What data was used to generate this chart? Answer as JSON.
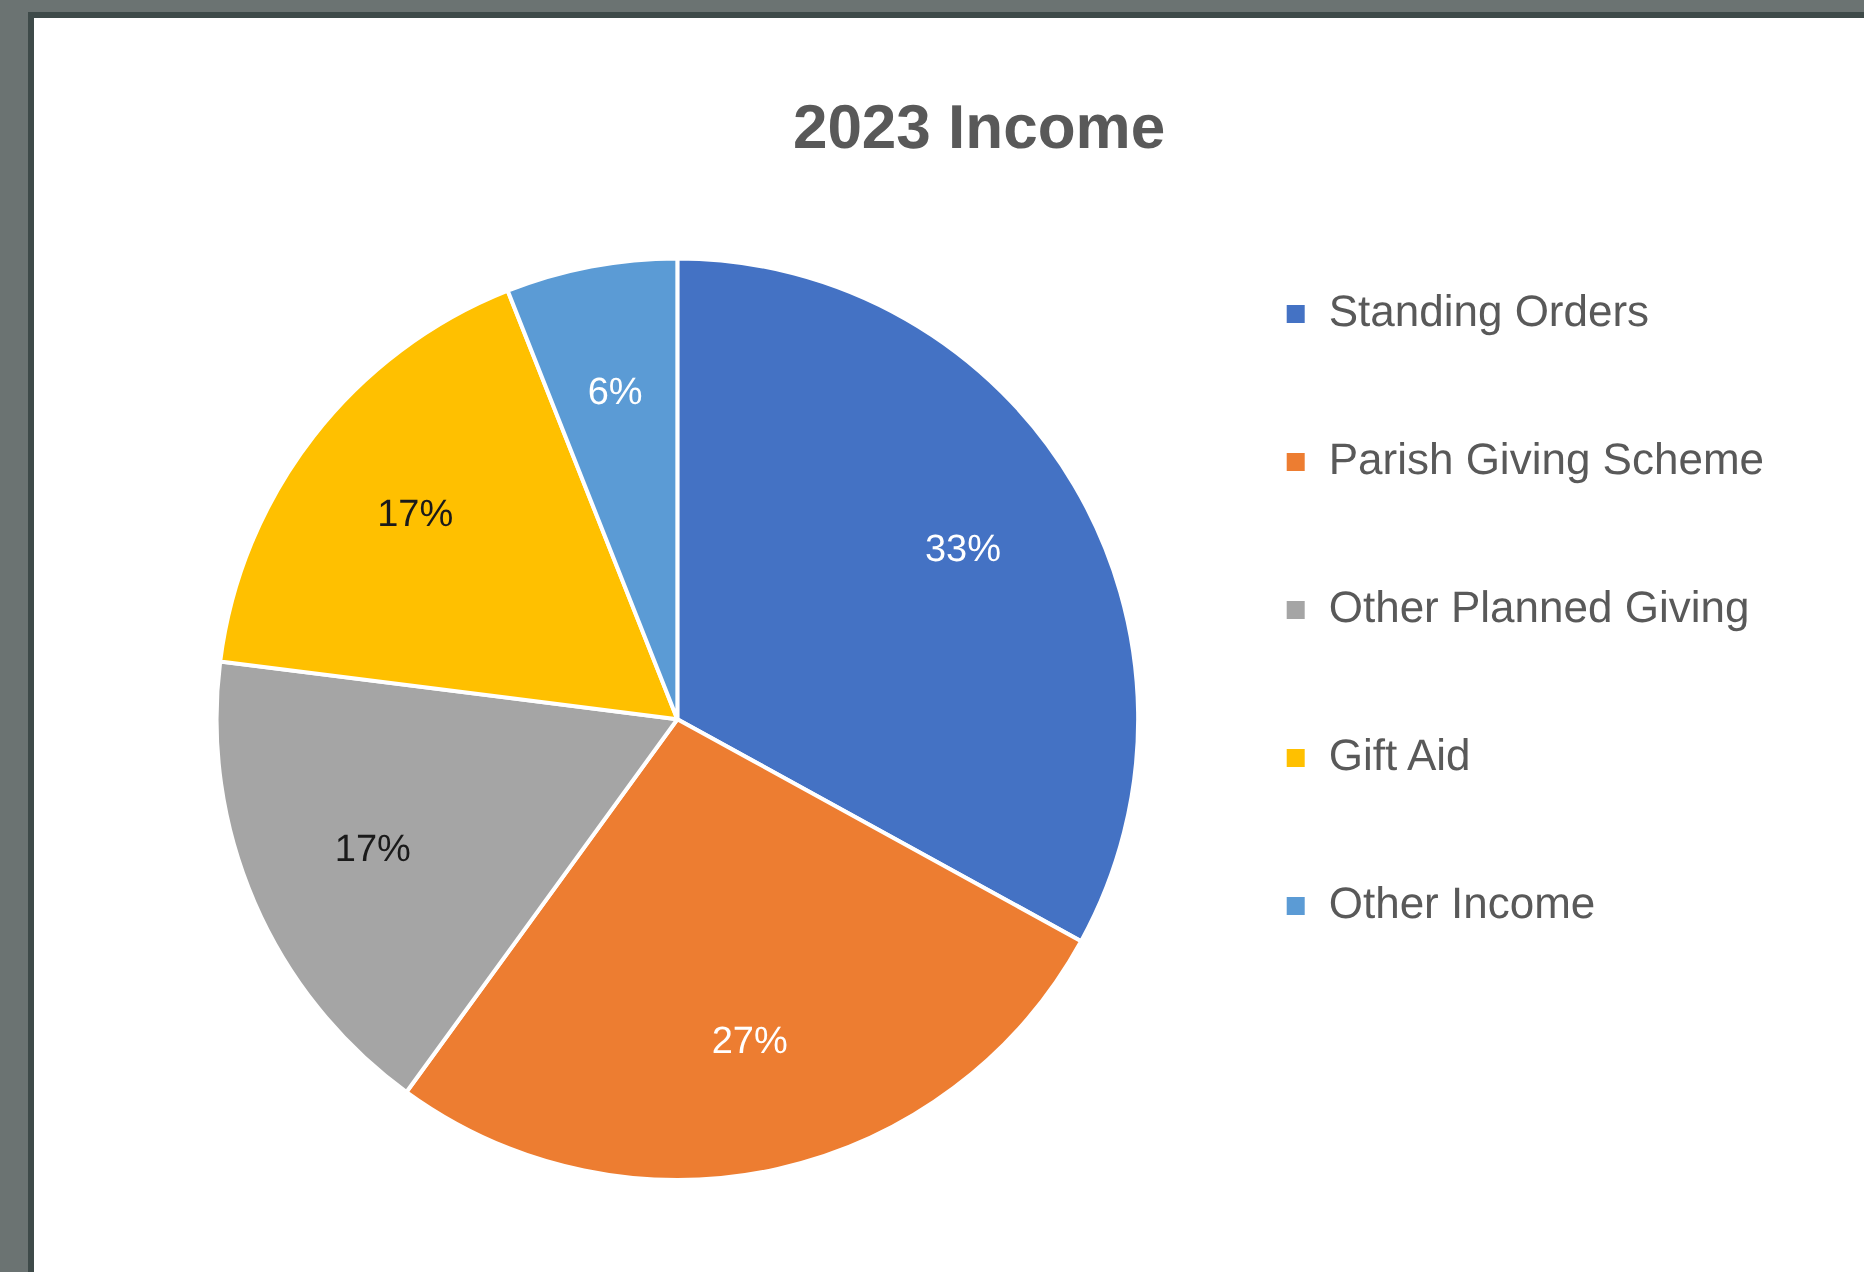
{
  "chart_data": {
    "type": "pie",
    "title": "2023 Income",
    "categories": [
      "Standing Orders",
      "Parish Giving Scheme",
      "Other Planned Giving",
      "Gift Aid",
      "Other Income"
    ],
    "values": [
      33,
      27,
      17,
      17,
      6
    ],
    "colors": [
      "#4472c4",
      "#ed7d31",
      "#a5a5a5",
      "#ffc000",
      "#5b9bd5"
    ],
    "value_labels": [
      "33%",
      "27%",
      "17%",
      "17%",
      "6%"
    ],
    "legend": "right"
  }
}
